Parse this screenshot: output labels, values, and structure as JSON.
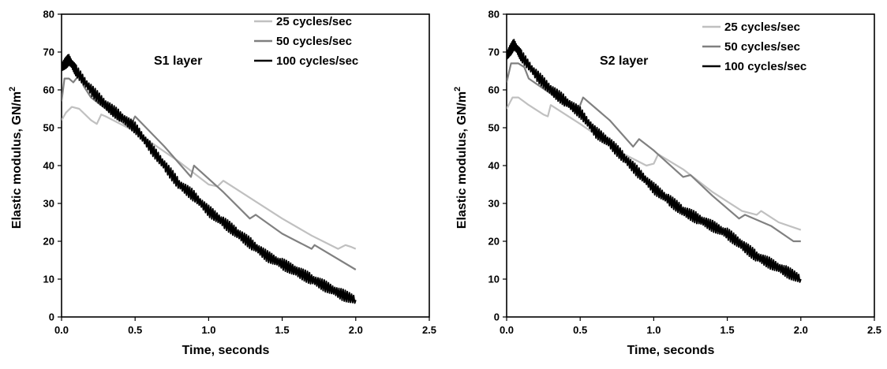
{
  "chart_data": [
    {
      "type": "line",
      "title": "S1 layer",
      "xlabel": "Time, seconds",
      "ylabel": "Elastic modulus, GN/m",
      "ylabel_sup": "2",
      "xlim": [
        0,
        2.5
      ],
      "ylim": [
        0,
        80
      ],
      "xticks": [
        "0.0",
        "0.5",
        "1.0",
        "1.5",
        "2.0",
        "2.5"
      ],
      "yticks": [
        "0",
        "10",
        "20",
        "30",
        "40",
        "50",
        "60",
        "70",
        "80"
      ],
      "grid": false,
      "legend_position": "top-right",
      "series": [
        {
          "name": "25 cycles/sec",
          "color": "#c0c0c0",
          "points": [
            [
              0.0,
              52
            ],
            [
              0.03,
              54
            ],
            [
              0.07,
              55.5
            ],
            [
              0.12,
              55
            ],
            [
              0.2,
              52
            ],
            [
              0.24,
              51
            ],
            [
              0.27,
              53.5
            ],
            [
              0.3,
              53
            ],
            [
              0.5,
              49
            ],
            [
              0.8,
              41
            ],
            [
              1.0,
              35
            ],
            [
              1.06,
              34.5
            ],
            [
              1.1,
              36
            ],
            [
              1.3,
              31
            ],
            [
              1.5,
              26
            ],
            [
              1.7,
              21.5
            ],
            [
              1.88,
              18
            ],
            [
              1.93,
              19
            ],
            [
              1.97,
              18.5
            ],
            [
              2.0,
              18
            ]
          ]
        },
        {
          "name": "50 cycles/sec",
          "color": "#808080",
          "points": [
            [
              0.0,
              57
            ],
            [
              0.02,
              63
            ],
            [
              0.05,
              63
            ],
            [
              0.08,
              62
            ],
            [
              0.12,
              64
            ],
            [
              0.15,
              61
            ],
            [
              0.2,
              58
            ],
            [
              0.3,
              55
            ],
            [
              0.46,
              50
            ],
            [
              0.5,
              53
            ],
            [
              0.7,
              45
            ],
            [
              0.88,
              37
            ],
            [
              0.9,
              40
            ],
            [
              1.1,
              33
            ],
            [
              1.28,
              26
            ],
            [
              1.32,
              27
            ],
            [
              1.5,
              22
            ],
            [
              1.7,
              18
            ],
            [
              1.72,
              19
            ],
            [
              2.0,
              12.5
            ]
          ]
        },
        {
          "name": "100 cycles/sec",
          "color": "#000000",
          "jitter": 1.5,
          "points": [
            [
              0.0,
              66
            ],
            [
              0.05,
              68
            ],
            [
              0.1,
              65
            ],
            [
              0.2,
              60
            ],
            [
              0.3,
              56
            ],
            [
              0.4,
              53
            ],
            [
              0.5,
              50
            ],
            [
              0.6,
              45
            ],
            [
              0.7,
              40
            ],
            [
              0.8,
              35
            ],
            [
              0.9,
              32
            ],
            [
              1.0,
              28
            ],
            [
              1.1,
              25
            ],
            [
              1.2,
              22
            ],
            [
              1.3,
              19
            ],
            [
              1.4,
              16
            ],
            [
              1.5,
              14
            ],
            [
              1.6,
              12
            ],
            [
              1.7,
              10
            ],
            [
              1.8,
              8
            ],
            [
              1.9,
              6
            ],
            [
              2.0,
              4.5
            ]
          ]
        }
      ]
    },
    {
      "type": "line",
      "title": "S2 layer",
      "xlabel": "Time, seconds",
      "ylabel": "Elastic modulus, GN/m",
      "ylabel_sup": "2",
      "xlim": [
        0,
        2.5
      ],
      "ylim": [
        0,
        80
      ],
      "xticks": [
        "0.0",
        "0.5",
        "1.0",
        "1.5",
        "2.0",
        "2.5"
      ],
      "yticks": [
        "0",
        "10",
        "20",
        "30",
        "40",
        "50",
        "60",
        "70",
        "80"
      ],
      "grid": false,
      "legend_position": "top-right",
      "series": [
        {
          "name": "25 cycles/sec",
          "color": "#c0c0c0",
          "points": [
            [
              0.0,
              55
            ],
            [
              0.04,
              58
            ],
            [
              0.08,
              58
            ],
            [
              0.15,
              56
            ],
            [
              0.25,
              53.5
            ],
            [
              0.28,
              53
            ],
            [
              0.3,
              56
            ],
            [
              0.5,
              51
            ],
            [
              0.8,
              43
            ],
            [
              0.95,
              40
            ],
            [
              1.0,
              40.5
            ],
            [
              1.03,
              43
            ],
            [
              1.2,
              39
            ],
            [
              1.4,
              33
            ],
            [
              1.6,
              28
            ],
            [
              1.7,
              27
            ],
            [
              1.73,
              28
            ],
            [
              1.85,
              25
            ],
            [
              2.0,
              23
            ]
          ]
        },
        {
          "name": "50 cycles/sec",
          "color": "#808080",
          "points": [
            [
              0.0,
              62
            ],
            [
              0.03,
              67
            ],
            [
              0.08,
              67
            ],
            [
              0.12,
              66
            ],
            [
              0.15,
              63
            ],
            [
              0.3,
              59
            ],
            [
              0.48,
              54
            ],
            [
              0.52,
              58
            ],
            [
              0.7,
              52
            ],
            [
              0.86,
              45
            ],
            [
              0.9,
              47
            ],
            [
              1.0,
              44
            ],
            [
              1.2,
              37
            ],
            [
              1.25,
              37.5
            ],
            [
              1.4,
              32
            ],
            [
              1.58,
              26
            ],
            [
              1.62,
              27
            ],
            [
              1.8,
              24
            ],
            [
              1.95,
              20
            ],
            [
              2.0,
              20
            ]
          ]
        },
        {
          "name": "100 cycles/sec",
          "color": "#000000",
          "jitter": 1.5,
          "points": [
            [
              0.0,
              69
            ],
            [
              0.05,
              72
            ],
            [
              0.1,
              69
            ],
            [
              0.2,
              64
            ],
            [
              0.3,
              60
            ],
            [
              0.4,
              57
            ],
            [
              0.5,
              54
            ],
            [
              0.6,
              49
            ],
            [
              0.7,
              46
            ],
            [
              0.8,
              42
            ],
            [
              0.9,
              38
            ],
            [
              1.0,
              34
            ],
            [
              1.1,
              31
            ],
            [
              1.2,
              28
            ],
            [
              1.3,
              26
            ],
            [
              1.4,
              24
            ],
            [
              1.5,
              22
            ],
            [
              1.6,
              19
            ],
            [
              1.7,
              16
            ],
            [
              1.8,
              14
            ],
            [
              1.9,
              12
            ],
            [
              2.0,
              10
            ]
          ]
        }
      ]
    }
  ]
}
